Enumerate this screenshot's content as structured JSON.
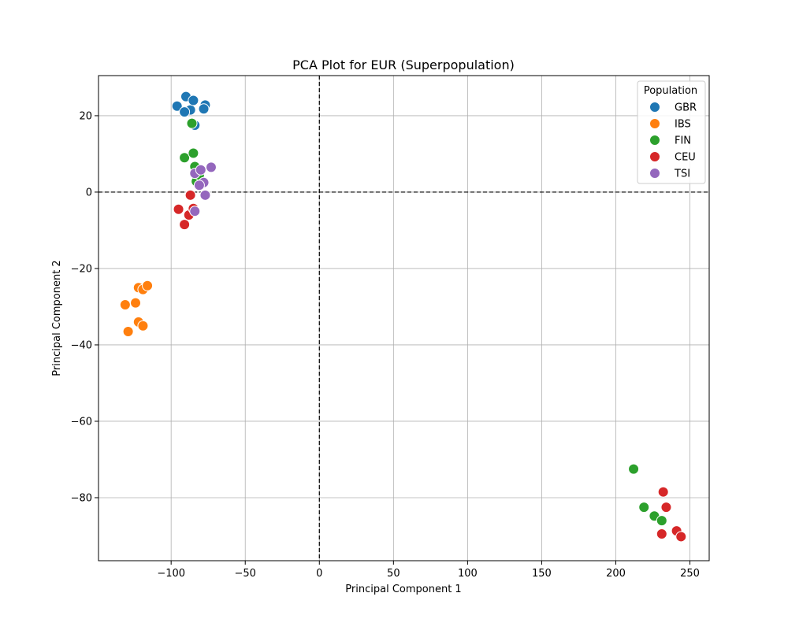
{
  "chart_data": {
    "type": "scatter",
    "title": "PCA Plot for EUR (Superpopulation)",
    "xlabel": "Principal Component 1",
    "ylabel": "Principal Component 2",
    "xlim": [
      -149,
      263
    ],
    "ylim": [
      -96.5,
      30.5
    ],
    "xticks": [
      -100,
      -50,
      0,
      50,
      100,
      150,
      200,
      250
    ],
    "yticks": [
      -80,
      -60,
      -40,
      -20,
      0,
      20
    ],
    "xtick_labels": [
      "−100",
      "−50",
      "0",
      "50",
      "100",
      "150",
      "200",
      "250"
    ],
    "ytick_labels": [
      "−80",
      "−60",
      "−40",
      "−20",
      "0",
      "20"
    ],
    "grid": true,
    "reference_lines": {
      "x": 0,
      "y": 0,
      "style": "dashed"
    },
    "legend": {
      "title": "Population",
      "placement": "top-right"
    },
    "series": [
      {
        "name": "GBR",
        "color": "#1f77b4",
        "points": [
          [
            -96,
            22.5
          ],
          [
            -90,
            25
          ],
          [
            -87,
            21.5
          ],
          [
            -85,
            24
          ],
          [
            -91,
            21
          ],
          [
            -77,
            22.8
          ],
          [
            -78,
            21.8
          ],
          [
            -84,
            17.5
          ]
        ]
      },
      {
        "name": "IBS",
        "color": "#ff7f0e",
        "points": [
          [
            -131,
            -29.5
          ],
          [
            -124,
            -29
          ],
          [
            -122,
            -25
          ],
          [
            -119,
            -25.5
          ],
          [
            -116,
            -24.5
          ],
          [
            -122,
            -34
          ],
          [
            -119,
            -35
          ],
          [
            -129,
            -36.5
          ]
        ]
      },
      {
        "name": "FIN",
        "color": "#2ca02c",
        "points": [
          [
            -91,
            9
          ],
          [
            -86,
            18
          ],
          [
            -85,
            10.2
          ],
          [
            -84,
            6.7
          ],
          [
            -83,
            2.8
          ],
          [
            -81,
            4.5
          ],
          [
            212,
            -72.5
          ],
          [
            219,
            -82.5
          ],
          [
            226,
            -84.8
          ],
          [
            231,
            -86
          ]
        ]
      },
      {
        "name": "CEU",
        "color": "#d62728",
        "points": [
          [
            -95,
            -4.5
          ],
          [
            -91,
            -8.5
          ],
          [
            -88,
            -6
          ],
          [
            -87,
            -0.8
          ],
          [
            -85,
            -4.3
          ],
          [
            232,
            -78.5
          ],
          [
            234,
            -82.5
          ],
          [
            231,
            -89.5
          ],
          [
            241,
            -88.7
          ],
          [
            244,
            -90.2
          ]
        ]
      },
      {
        "name": "TSI",
        "color": "#9467bd",
        "points": [
          [
            -84,
            4.9
          ],
          [
            -80,
            5.8
          ],
          [
            -78,
            2.5
          ],
          [
            -81,
            1.8
          ],
          [
            -77,
            -0.8
          ],
          [
            -73,
            6.5
          ],
          [
            -84,
            -5
          ]
        ]
      }
    ]
  }
}
